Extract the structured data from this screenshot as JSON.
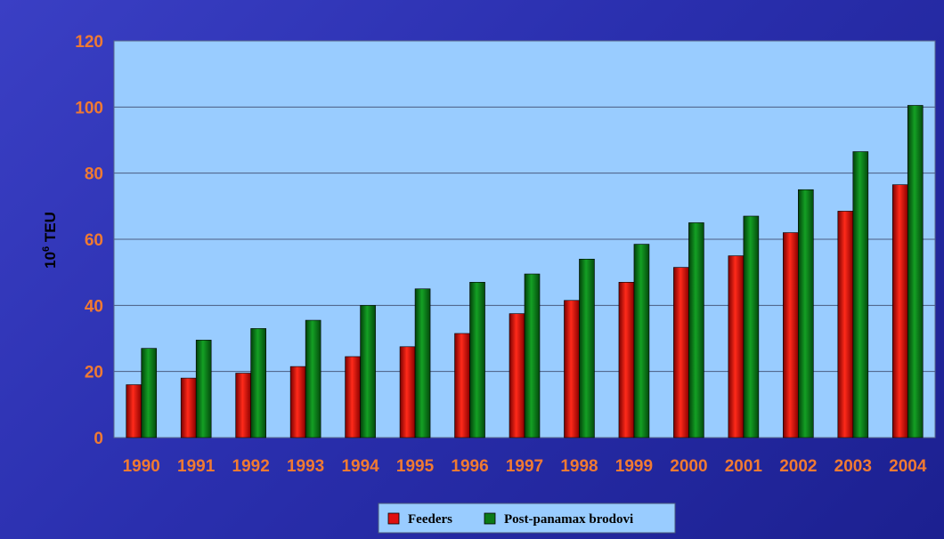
{
  "chart_data": {
    "type": "bar",
    "categories": [
      "1990",
      "1991",
      "1992",
      "1993",
      "1994",
      "1995",
      "1996",
      "1997",
      "1998",
      "1999",
      "2000",
      "2001",
      "2002",
      "2003",
      "2004"
    ],
    "series": [
      {
        "name": "Feeders",
        "color": "#e01010",
        "values": [
          16,
          18,
          19.5,
          21.5,
          24.5,
          27.5,
          31.5,
          37.5,
          41.5,
          47,
          51.5,
          55,
          62,
          68.5,
          76.5
        ]
      },
      {
        "name": "Post-panamax brodovi",
        "color": "#0b7a17",
        "values": [
          27,
          29.5,
          33,
          35.5,
          40,
          45,
          47,
          49.5,
          54,
          58.5,
          65,
          67,
          75,
          86.5,
          100.5
        ]
      }
    ],
    "ylabel": "10",
    "ylabel_superscript": "6",
    "ylabel_unit": " TEU",
    "ylim": [
      0,
      120
    ],
    "yticks": [
      0,
      20,
      40,
      60,
      80,
      100,
      120
    ],
    "grid": true,
    "legend_position": "bottom-center"
  },
  "colors": {
    "plot_background": "#99ccff",
    "tick_label": "#f07a32"
  }
}
